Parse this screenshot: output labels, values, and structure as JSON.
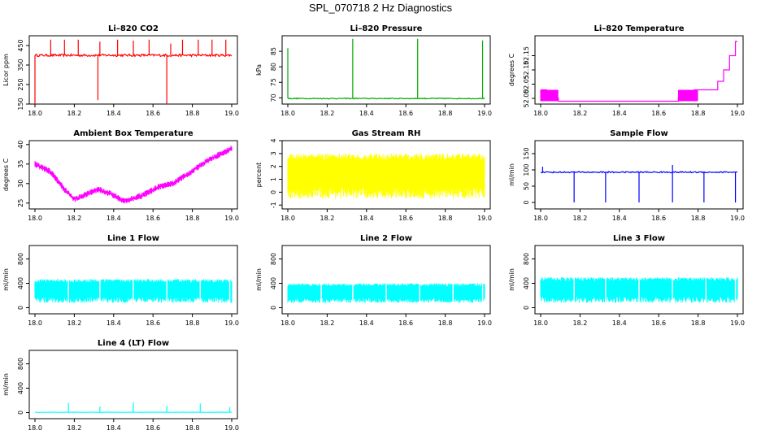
{
  "figure": {
    "title": "SPL_070718  2 Hz Diagnostics"
  },
  "chart_data": [
    {
      "id": "co2",
      "type": "line",
      "title": "Li–820 CO2",
      "ylabel": "Licor ppm",
      "color": "#ff0000",
      "xlim": [
        18.0,
        19.0
      ],
      "ylim": [
        150,
        500
      ],
      "xticks": [
        18.0,
        18.2,
        18.4,
        18.6,
        18.8,
        19.0
      ],
      "yticks": [
        150,
        250,
        350,
        450
      ],
      "ytick_labels": [
        "150",
        "250",
        "350",
        "450"
      ],
      "baseline": 400,
      "noise": 6,
      "spikes": [
        [
          18.0,
          150
        ],
        [
          18.08,
          480
        ],
        [
          18.15,
          480
        ],
        [
          18.22,
          480
        ],
        [
          18.32,
          170
        ],
        [
          18.33,
          470
        ],
        [
          18.42,
          480
        ],
        [
          18.5,
          475
        ],
        [
          18.58,
          480
        ],
        [
          18.67,
          150
        ],
        [
          18.69,
          460
        ],
        [
          18.75,
          480
        ],
        [
          18.83,
          480
        ],
        [
          18.9,
          480
        ],
        [
          18.97,
          480
        ]
      ]
    },
    {
      "id": "pressure",
      "type": "line",
      "title": "Li–820 Pressure",
      "ylabel": "kPa",
      "color": "#00aa00",
      "xlim": [
        18.0,
        19.0
      ],
      "ylim": [
        68,
        90
      ],
      "xticks": [
        18.0,
        18.2,
        18.4,
        18.6,
        18.8,
        19.0
      ],
      "yticks": [
        70,
        75,
        80,
        85
      ],
      "ytick_labels": [
        "70",
        "75",
        "80",
        "85"
      ],
      "baseline": 69.8,
      "noise": 0.15,
      "spikes": [
        [
          18.0,
          86
        ],
        [
          18.33,
          89
        ],
        [
          18.66,
          89
        ],
        [
          18.99,
          88.5
        ]
      ]
    },
    {
      "id": "temperature",
      "type": "line",
      "title": "Li–820 Temperature",
      "ylabel": "degrees C",
      "color": "#ff00ff",
      "xlim": [
        18.0,
        19.0
      ],
      "ylim": [
        51.98,
        52.22
      ],
      "xticks": [
        18.0,
        18.2,
        18.4,
        18.6,
        18.8,
        19.0
      ],
      "yticks": [
        52.0,
        52.05,
        52.1,
        52.15
      ],
      "ytick_labels": [
        "52.00",
        "52.05",
        "52.10",
        "52.15"
      ],
      "steps": [
        [
          18.0,
          52.03
        ],
        [
          18.03,
          52.0
        ],
        [
          18.09,
          51.99
        ],
        [
          18.7,
          52.0
        ],
        [
          18.78,
          52.03
        ],
        [
          18.9,
          52.06
        ],
        [
          18.93,
          52.1
        ],
        [
          18.96,
          52.15
        ],
        [
          18.99,
          52.2
        ]
      ]
    },
    {
      "id": "ambient",
      "type": "line",
      "title": "Ambient Box Temperature",
      "ylabel": "degrees C",
      "color": "#ff00ff",
      "xlim": [
        18.0,
        19.0
      ],
      "ylim": [
        23.5,
        41
      ],
      "xticks": [
        18.0,
        18.2,
        18.4,
        18.6,
        18.8,
        19.0
      ],
      "yticks": [
        25,
        30,
        35,
        40
      ],
      "ytick_labels": [
        "25",
        "30",
        "35",
        "40"
      ],
      "curve": [
        [
          18.0,
          35
        ],
        [
          18.08,
          33
        ],
        [
          18.15,
          28.5
        ],
        [
          18.2,
          26
        ],
        [
          18.25,
          27
        ],
        [
          18.32,
          28.5
        ],
        [
          18.38,
          27.5
        ],
        [
          18.45,
          25.5
        ],
        [
          18.55,
          27
        ],
        [
          18.62,
          29
        ],
        [
          18.7,
          30
        ],
        [
          18.78,
          32.5
        ],
        [
          18.88,
          36
        ],
        [
          19.0,
          39
        ]
      ],
      "noise": 0.8
    },
    {
      "id": "rh",
      "type": "band",
      "title": "Gas Stream RH",
      "ylabel": "percent",
      "color": "#ffff00",
      "xlim": [
        18.0,
        19.0
      ],
      "ylim": [
        -1.3,
        4
      ],
      "xticks": [
        18.0,
        18.2,
        18.4,
        18.6,
        18.8,
        19.0
      ],
      "yticks": [
        -1,
        0,
        1,
        2,
        3,
        4
      ],
      "ytick_labels": [
        "-1",
        "0",
        "1",
        "2",
        "3",
        "4"
      ],
      "band_low": -0.5,
      "band_high": 3
    },
    {
      "id": "sample_flow",
      "type": "line",
      "title": "Sample Flow",
      "ylabel": "ml/min",
      "color": "#0000ff",
      "xlim": [
        18.0,
        19.0
      ],
      "ylim": [
        -20,
        190
      ],
      "xticks": [
        18.0,
        18.2,
        18.4,
        18.6,
        18.8,
        19.0
      ],
      "yticks": [
        0,
        50,
        100,
        150
      ],
      "ytick_labels": [
        "0",
        "50",
        "100",
        "150"
      ],
      "baseline": 93,
      "noise": 2,
      "spikes": [
        [
          18.01,
          110
        ],
        [
          18.17,
          0
        ],
        [
          18.33,
          0
        ],
        [
          18.5,
          0
        ],
        [
          18.67,
          0
        ],
        [
          18.83,
          0
        ],
        [
          18.99,
          0
        ],
        [
          18.67,
          115
        ]
      ]
    },
    {
      "id": "line1",
      "type": "band",
      "title": "Line 1 Flow",
      "ylabel": "ml/min",
      "color": "#00ffff",
      "xlim": [
        18.0,
        19.0
      ],
      "ylim": [
        -100,
        1020
      ],
      "xticks": [
        18.0,
        18.2,
        18.4,
        18.6,
        18.8,
        19.0
      ],
      "yticks": [
        0,
        400,
        800
      ],
      "ytick_labels": [
        "0",
        "400",
        "800"
      ],
      "band_low": 80,
      "band_high": 470
    },
    {
      "id": "line2",
      "type": "band",
      "title": "Line 2 Flow",
      "ylabel": "ml/min",
      "color": "#00ffff",
      "xlim": [
        18.0,
        19.0
      ],
      "ylim": [
        -100,
        1020
      ],
      "xticks": [
        18.0,
        18.2,
        18.4,
        18.6,
        18.8,
        19.0
      ],
      "yticks": [
        0,
        400,
        800
      ],
      "ytick_labels": [
        "0",
        "400",
        "800"
      ],
      "band_low": 80,
      "band_high": 400
    },
    {
      "id": "line3",
      "type": "band",
      "title": "Line 3 Flow",
      "ylabel": "ml/min",
      "color": "#00ffff",
      "xlim": [
        18.0,
        19.0
      ],
      "ylim": [
        -100,
        1020
      ],
      "xticks": [
        18.0,
        18.2,
        18.4,
        18.6,
        18.8,
        19.0
      ],
      "yticks": [
        0,
        400,
        800
      ],
      "ytick_labels": [
        "0",
        "400",
        "800"
      ],
      "band_low": 80,
      "band_high": 500
    },
    {
      "id": "line4",
      "type": "line",
      "title": "Line 4 (LT) Flow",
      "ylabel": "ml/min",
      "color": "#00ffff",
      "xlim": [
        18.0,
        19.0
      ],
      "ylim": [
        -100,
        1020
      ],
      "xticks": [
        18.0,
        18.2,
        18.4,
        18.6,
        18.8,
        19.0
      ],
      "yticks": [
        0,
        400,
        800
      ],
      "ytick_labels": [
        "0",
        "400",
        "800"
      ],
      "baseline": 5,
      "noise": 2,
      "spikes": [
        [
          18.17,
          160
        ],
        [
          18.33,
          100
        ],
        [
          18.5,
          170
        ],
        [
          18.67,
          110
        ],
        [
          18.84,
          150
        ],
        [
          18.99,
          90
        ]
      ]
    }
  ],
  "xtick_labels": [
    "18.0",
    "18.2",
    "18.4",
    "18.6",
    "18.8",
    "19.0"
  ]
}
